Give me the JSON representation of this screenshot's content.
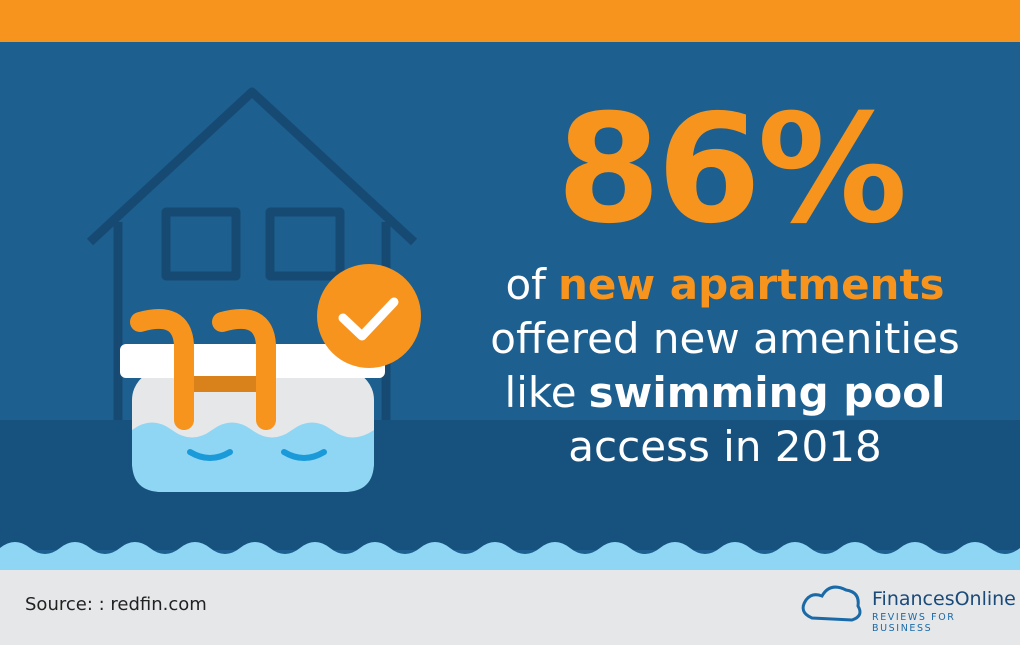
{
  "stat": "86%",
  "lines": [
    [
      {
        "text": "of",
        "weight": "normal"
      },
      {
        "text": "new apartments",
        "weight": "bold",
        "color": "#f7941d"
      }
    ],
    [
      {
        "text": "offered new amenities",
        "weight": "normal"
      }
    ],
    [
      {
        "text": "like",
        "weight": "normal"
      },
      {
        "text": "swimming pool",
        "weight": "bold"
      }
    ],
    [
      {
        "text": "access in 2018",
        "weight": "normal"
      }
    ]
  ],
  "source": "Source: : redfin.com",
  "logo": {
    "name": "FinancesOnline",
    "tagline": "REVIEWS FOR BUSINESS"
  }
}
